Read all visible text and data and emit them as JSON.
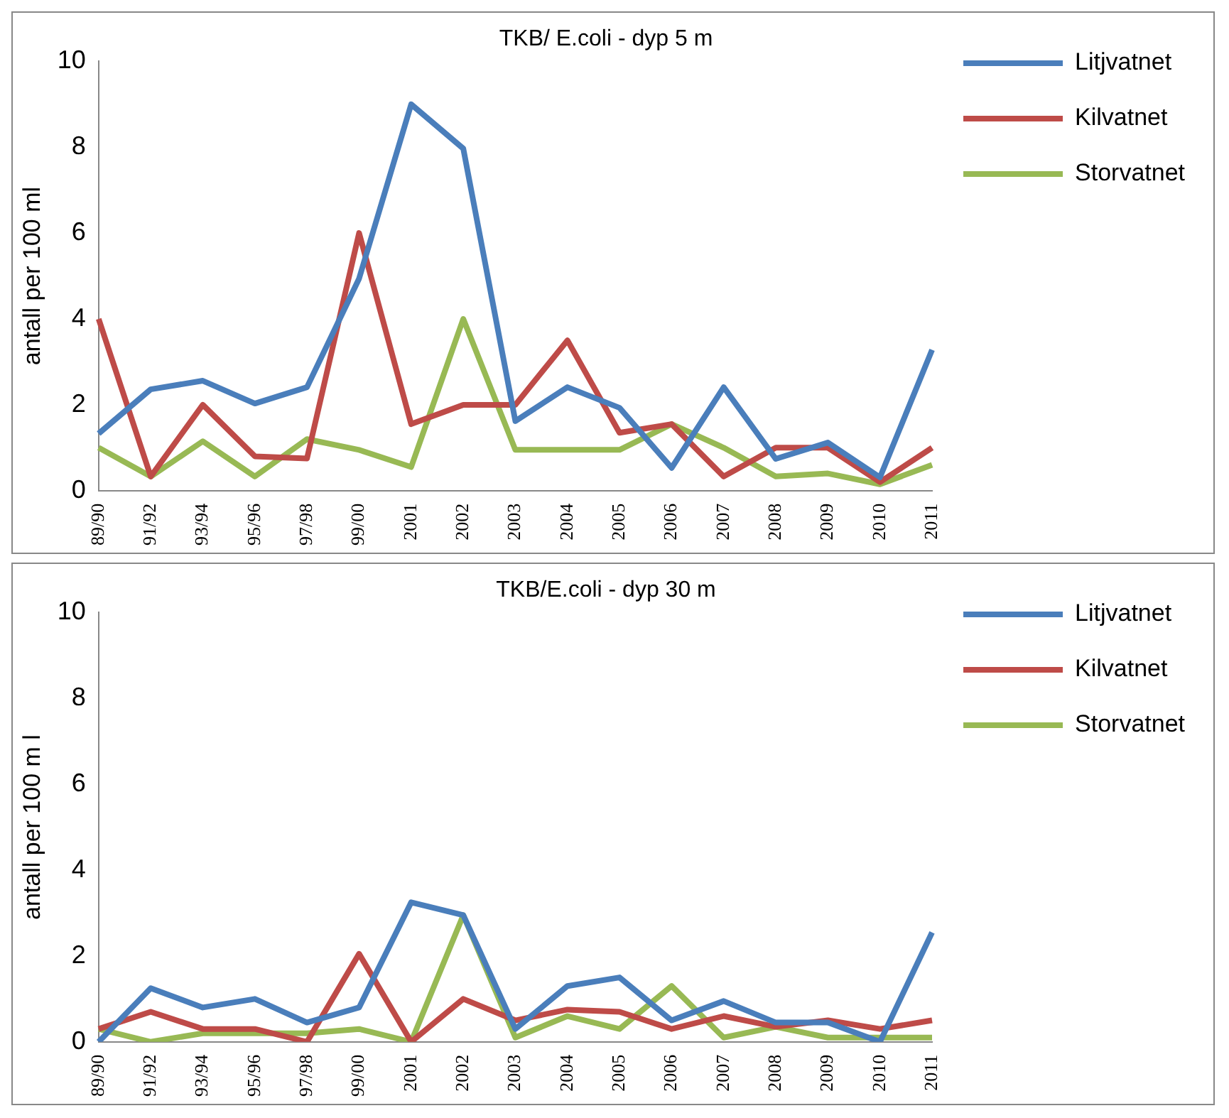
{
  "chart_data": [
    {
      "type": "line",
      "title": "TKB/ E.coli - dyp 5 m",
      "ylabel": "antall per 100 ml",
      "categories": [
        "89/90",
        "91/92",
        "93/94",
        "95/96",
        "97/98",
        "99/00",
        "2001",
        "2002",
        "2003",
        "2004",
        "2005",
        "2006",
        "2007",
        "2008",
        "2009",
        "2010",
        "2011"
      ],
      "ylim": [
        0,
        10
      ],
      "yticks": [
        0,
        2,
        4,
        6,
        8,
        10
      ],
      "grid": false,
      "legend": "top right",
      "marker": "none",
      "series": [
        {
          "name": "Litjvatnet",
          "color": "#4a7ebb",
          "values": [
            1.33,
            2.36,
            2.56,
            2.03,
            2.41,
            4.94,
            9.0,
            7.97,
            1.62,
            2.41,
            1.93,
            0.53,
            2.41,
            0.74,
            1.12,
            0.31,
            3.28
          ]
        },
        {
          "name": "Kilvatnet",
          "color": "#be4b48",
          "values": [
            4.0,
            0.33,
            2.0,
            0.8,
            0.75,
            6.0,
            1.55,
            2.0,
            2.0,
            3.5,
            1.35,
            1.55,
            0.33,
            1.0,
            1.0,
            0.2,
            1.0
          ]
        },
        {
          "name": "Storvatnet",
          "color": "#98b954",
          "values": [
            1.0,
            0.33,
            1.15,
            0.33,
            1.2,
            0.95,
            0.55,
            4.0,
            0.95,
            0.95,
            0.95,
            1.55,
            1.0,
            0.33,
            0.4,
            0.15,
            0.6
          ]
        }
      ]
    },
    {
      "type": "line",
      "title": "TKB/E.coli - dyp 30 m",
      "ylabel": "antall per 100 m l",
      "categories": [
        "89/90",
        "91/92",
        "93/94",
        "95/96",
        "97/98",
        "99/00",
        "2001",
        "2002",
        "2003",
        "2004",
        "2005",
        "2006",
        "2007",
        "2008",
        "2009",
        "2010",
        "2011"
      ],
      "ylim": [
        0,
        10
      ],
      "yticks": [
        0,
        2,
        4,
        6,
        8,
        10
      ],
      "grid": false,
      "legend": "top right",
      "marker": "none",
      "series": [
        {
          "name": "Litjvatnet",
          "color": "#4a7ebb",
          "values": [
            0.0,
            1.25,
            0.8,
            1.0,
            0.45,
            0.8,
            3.25,
            2.95,
            0.3,
            1.3,
            1.5,
            0.5,
            0.95,
            0.45,
            0.45,
            0.0,
            2.55
          ]
        },
        {
          "name": "Kilvatnet",
          "color": "#be4b48",
          "values": [
            0.3,
            0.7,
            0.3,
            0.3,
            0.0,
            2.05,
            0.0,
            1.0,
            0.5,
            0.75,
            0.7,
            0.3,
            0.6,
            0.35,
            0.5,
            0.3,
            0.5
          ]
        },
        {
          "name": "Storvatnet",
          "color": "#98b954",
          "values": [
            0.3,
            0.0,
            0.2,
            0.2,
            0.2,
            0.3,
            0.0,
            2.95,
            0.1,
            0.6,
            0.3,
            1.3,
            0.1,
            0.35,
            0.1,
            0.1,
            0.1
          ]
        }
      ]
    }
  ]
}
